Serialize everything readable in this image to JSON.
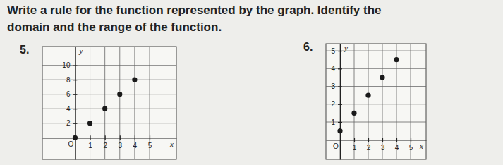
{
  "heading": [
    "Write a rule for the function represented by the graph. Identify the",
    "domain and the range of the function."
  ],
  "chart_data": [
    {
      "type": "scatter",
      "title": "5.",
      "x": [
        0,
        1,
        2,
        3,
        4
      ],
      "values": [
        0,
        2,
        4,
        6,
        8
      ],
      "xlim": [
        -2.2,
        6.8
      ],
      "ylim": [
        -3,
        12.6
      ],
      "xticks": [
        1,
        2,
        3,
        4,
        5
      ],
      "yticks": [
        2,
        4,
        6,
        8,
        10
      ],
      "xlabel": "x",
      "ylabel": "y",
      "annotations": [
        "O"
      ],
      "grid": true,
      "color": "#1a1a1a",
      "marker": "circle"
    },
    {
      "type": "scatter",
      "title": "6.",
      "x": [
        0,
        1,
        2,
        3,
        4
      ],
      "values": [
        0.5,
        1.5,
        2.5,
        3.5,
        4.5
      ],
      "xlim": [
        -1,
        6.1
      ],
      "ylim": [
        -1.1,
        5.4
      ],
      "xticks": [
        1,
        2,
        3,
        4,
        5
      ],
      "yticks": [
        1,
        2,
        3,
        4,
        5
      ],
      "xlabel": "x",
      "ylabel": "y",
      "annotations": [
        "O"
      ],
      "grid": true,
      "color": "#1a1a1a",
      "marker": "circle"
    }
  ]
}
